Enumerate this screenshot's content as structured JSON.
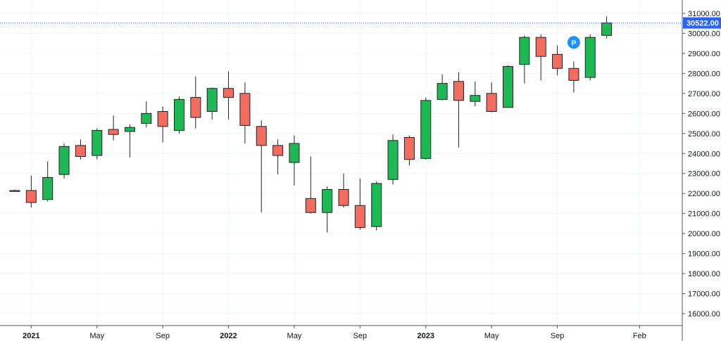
{
  "chart_data": {
    "type": "candlestick",
    "interval": "1M",
    "colors": {
      "up": "#1db954",
      "down": "#f46b5f",
      "border": "#222222",
      "price_line": "#2962ff",
      "marker": "#1e90ff"
    },
    "ylim": [
      15500,
      31500
    ],
    "y_ticks": [
      "16000.00",
      "17000.00",
      "18000.00",
      "19000.00",
      "20000.00",
      "21000.00",
      "22000.00",
      "23000.00",
      "24000.00",
      "25000.00",
      "26000.00",
      "27000.00",
      "28000.00",
      "29000.00",
      "30000.00",
      "31000.00"
    ],
    "y_tick_values": [
      16000,
      17000,
      18000,
      19000,
      20000,
      21000,
      22000,
      23000,
      24000,
      25000,
      26000,
      27000,
      28000,
      29000,
      30000,
      31000
    ],
    "x_labels": [
      {
        "label": "2021",
        "index": 1,
        "bold": true
      },
      {
        "label": "May",
        "index": 5,
        "bold": false
      },
      {
        "label": "Sep",
        "index": 9,
        "bold": false
      },
      {
        "label": "2022",
        "index": 13,
        "bold": true
      },
      {
        "label": "May",
        "index": 17,
        "bold": false
      },
      {
        "label": "Sep",
        "index": 21,
        "bold": false
      },
      {
        "label": "2023",
        "index": 25,
        "bold": true
      },
      {
        "label": "May",
        "index": 29,
        "bold": false
      },
      {
        "label": "Sep",
        "index": 33,
        "bold": false
      },
      {
        "label": "Feb",
        "index": 38,
        "bold": false
      }
    ],
    "last_price": 30522,
    "last_price_label": "30522.00",
    "marker": {
      "label": "P",
      "index": 34,
      "y": 29550
    },
    "candles": [
      {
        "o": 22150,
        "h": 22200,
        "l": 22100,
        "c": 22100
      },
      {
        "o": 22150,
        "h": 22900,
        "l": 21300,
        "c": 21550
      },
      {
        "o": 21700,
        "h": 23600,
        "l": 21600,
        "c": 22800
      },
      {
        "o": 22950,
        "h": 24500,
        "l": 22750,
        "c": 24350
      },
      {
        "o": 24400,
        "h": 24700,
        "l": 23700,
        "c": 23850
      },
      {
        "o": 23900,
        "h": 25250,
        "l": 23700,
        "c": 25150
      },
      {
        "o": 25200,
        "h": 25900,
        "l": 24650,
        "c": 24950
      },
      {
        "o": 25100,
        "h": 25450,
        "l": 23800,
        "c": 25300
      },
      {
        "o": 25500,
        "h": 26600,
        "l": 25300,
        "c": 26000
      },
      {
        "o": 26100,
        "h": 26350,
        "l": 24550,
        "c": 25350
      },
      {
        "o": 25150,
        "h": 26850,
        "l": 25000,
        "c": 26700
      },
      {
        "o": 26800,
        "h": 27850,
        "l": 25250,
        "c": 25800
      },
      {
        "o": 26100,
        "h": 27300,
        "l": 25700,
        "c": 27250
      },
      {
        "o": 27250,
        "h": 28100,
        "l": 25700,
        "c": 26800
      },
      {
        "o": 27000,
        "h": 27550,
        "l": 24500,
        "c": 25400
      },
      {
        "o": 25350,
        "h": 25650,
        "l": 21050,
        "c": 24400
      },
      {
        "o": 24400,
        "h": 24700,
        "l": 22950,
        "c": 23900
      },
      {
        "o": 23550,
        "h": 24900,
        "l": 22400,
        "c": 24500
      },
      {
        "o": 21750,
        "h": 23850,
        "l": 21000,
        "c": 21050
      },
      {
        "o": 21050,
        "h": 22350,
        "l": 20050,
        "c": 22200
      },
      {
        "o": 22200,
        "h": 23000,
        "l": 21300,
        "c": 21400
      },
      {
        "o": 21400,
        "h": 22750,
        "l": 20200,
        "c": 20300
      },
      {
        "o": 20350,
        "h": 22600,
        "l": 20150,
        "c": 22500
      },
      {
        "o": 22700,
        "h": 24950,
        "l": 22450,
        "c": 24650
      },
      {
        "o": 24800,
        "h": 24900,
        "l": 23400,
        "c": 23700
      },
      {
        "o": 23750,
        "h": 26800,
        "l": 23700,
        "c": 26650
      },
      {
        "o": 26700,
        "h": 27950,
        "l": 26650,
        "c": 27500
      },
      {
        "o": 27600,
        "h": 28050,
        "l": 24300,
        "c": 26650
      },
      {
        "o": 26600,
        "h": 27600,
        "l": 26350,
        "c": 26900
      },
      {
        "o": 27000,
        "h": 27550,
        "l": 26050,
        "c": 26100
      },
      {
        "o": 26300,
        "h": 28400,
        "l": 26300,
        "c": 28350
      },
      {
        "o": 28450,
        "h": 29900,
        "l": 27500,
        "c": 29800
      },
      {
        "o": 29800,
        "h": 29950,
        "l": 27650,
        "c": 28850
      },
      {
        "o": 28950,
        "h": 29400,
        "l": 27900,
        "c": 28250
      },
      {
        "o": 28250,
        "h": 28600,
        "l": 27050,
        "c": 27650
      },
      {
        "o": 27800,
        "h": 29950,
        "l": 27650,
        "c": 29800
      },
      {
        "o": 29900,
        "h": 30850,
        "l": 29750,
        "c": 30522
      }
    ]
  }
}
